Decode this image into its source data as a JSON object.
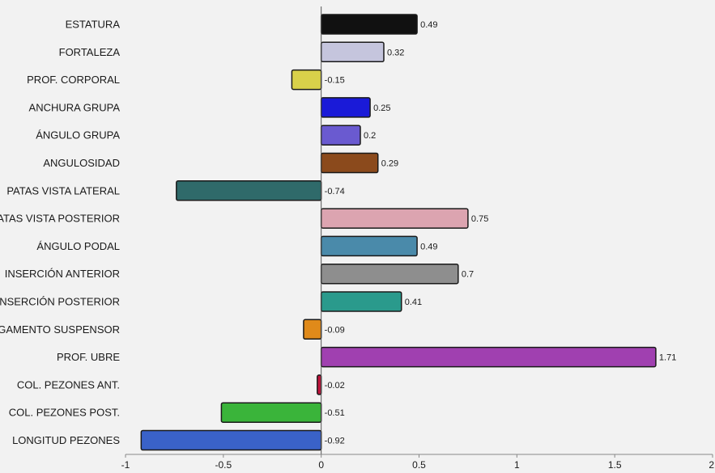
{
  "chart_data": {
    "type": "bar",
    "orientation": "horizontal",
    "title": "",
    "xlabel": "",
    "ylabel": "",
    "xlim": [
      -1,
      2
    ],
    "x_ticks": [
      -1,
      -0.5,
      0,
      0.5,
      1,
      1.5,
      2
    ],
    "x_tick_labels": [
      "-1",
      "-0.5",
      "0",
      "0.5",
      "1",
      "1.5",
      "2"
    ],
    "grid": false,
    "legend": "none",
    "categories": [
      "ESTATURA",
      "FORTALEZA",
      "PROF. CORPORAL",
      "ANCHURA GRUPA",
      "ÁNGULO GRUPA",
      "ANGULOSIDAD",
      "PATAS VISTA LATERAL",
      "PATAS VISTA POSTERIOR",
      "ÁNGULO PODAL",
      "INSERCIÓN ANTERIOR",
      "INSERCIÓN POSTERIOR",
      "LIGAMENTO SUSPENSOR",
      "PROF. UBRE",
      "COL. PEZONES ANT.",
      "COL. PEZONES POST.",
      "LONGITUD PEZONES"
    ],
    "values": [
      0.49,
      0.32,
      -0.15,
      0.25,
      0.2,
      0.29,
      -0.74,
      0.75,
      0.49,
      0.7,
      0.41,
      -0.09,
      1.71,
      -0.02,
      -0.51,
      -0.92
    ],
    "value_labels": [
      "0.49",
      "0.32",
      "-0.15",
      "0.25",
      "0.2",
      "0.29",
      "-0.74",
      "0.75",
      "0.49",
      "0.7",
      "0.41",
      "-0.09",
      "1.71",
      "-0.02",
      "-0.51",
      "-0.92"
    ],
    "colors": [
      "#111111",
      "#c5c5dd",
      "#d9d14a",
      "#1a1ad8",
      "#6a5ad0",
      "#8b4a1c",
      "#2f6a6a",
      "#dca4b0",
      "#4a8aaa",
      "#8e8e8e",
      "#2a9a8c",
      "#e08a1a",
      "#a040b0",
      "#c0143c",
      "#3ab43a",
      "#3a62c8"
    ]
  }
}
